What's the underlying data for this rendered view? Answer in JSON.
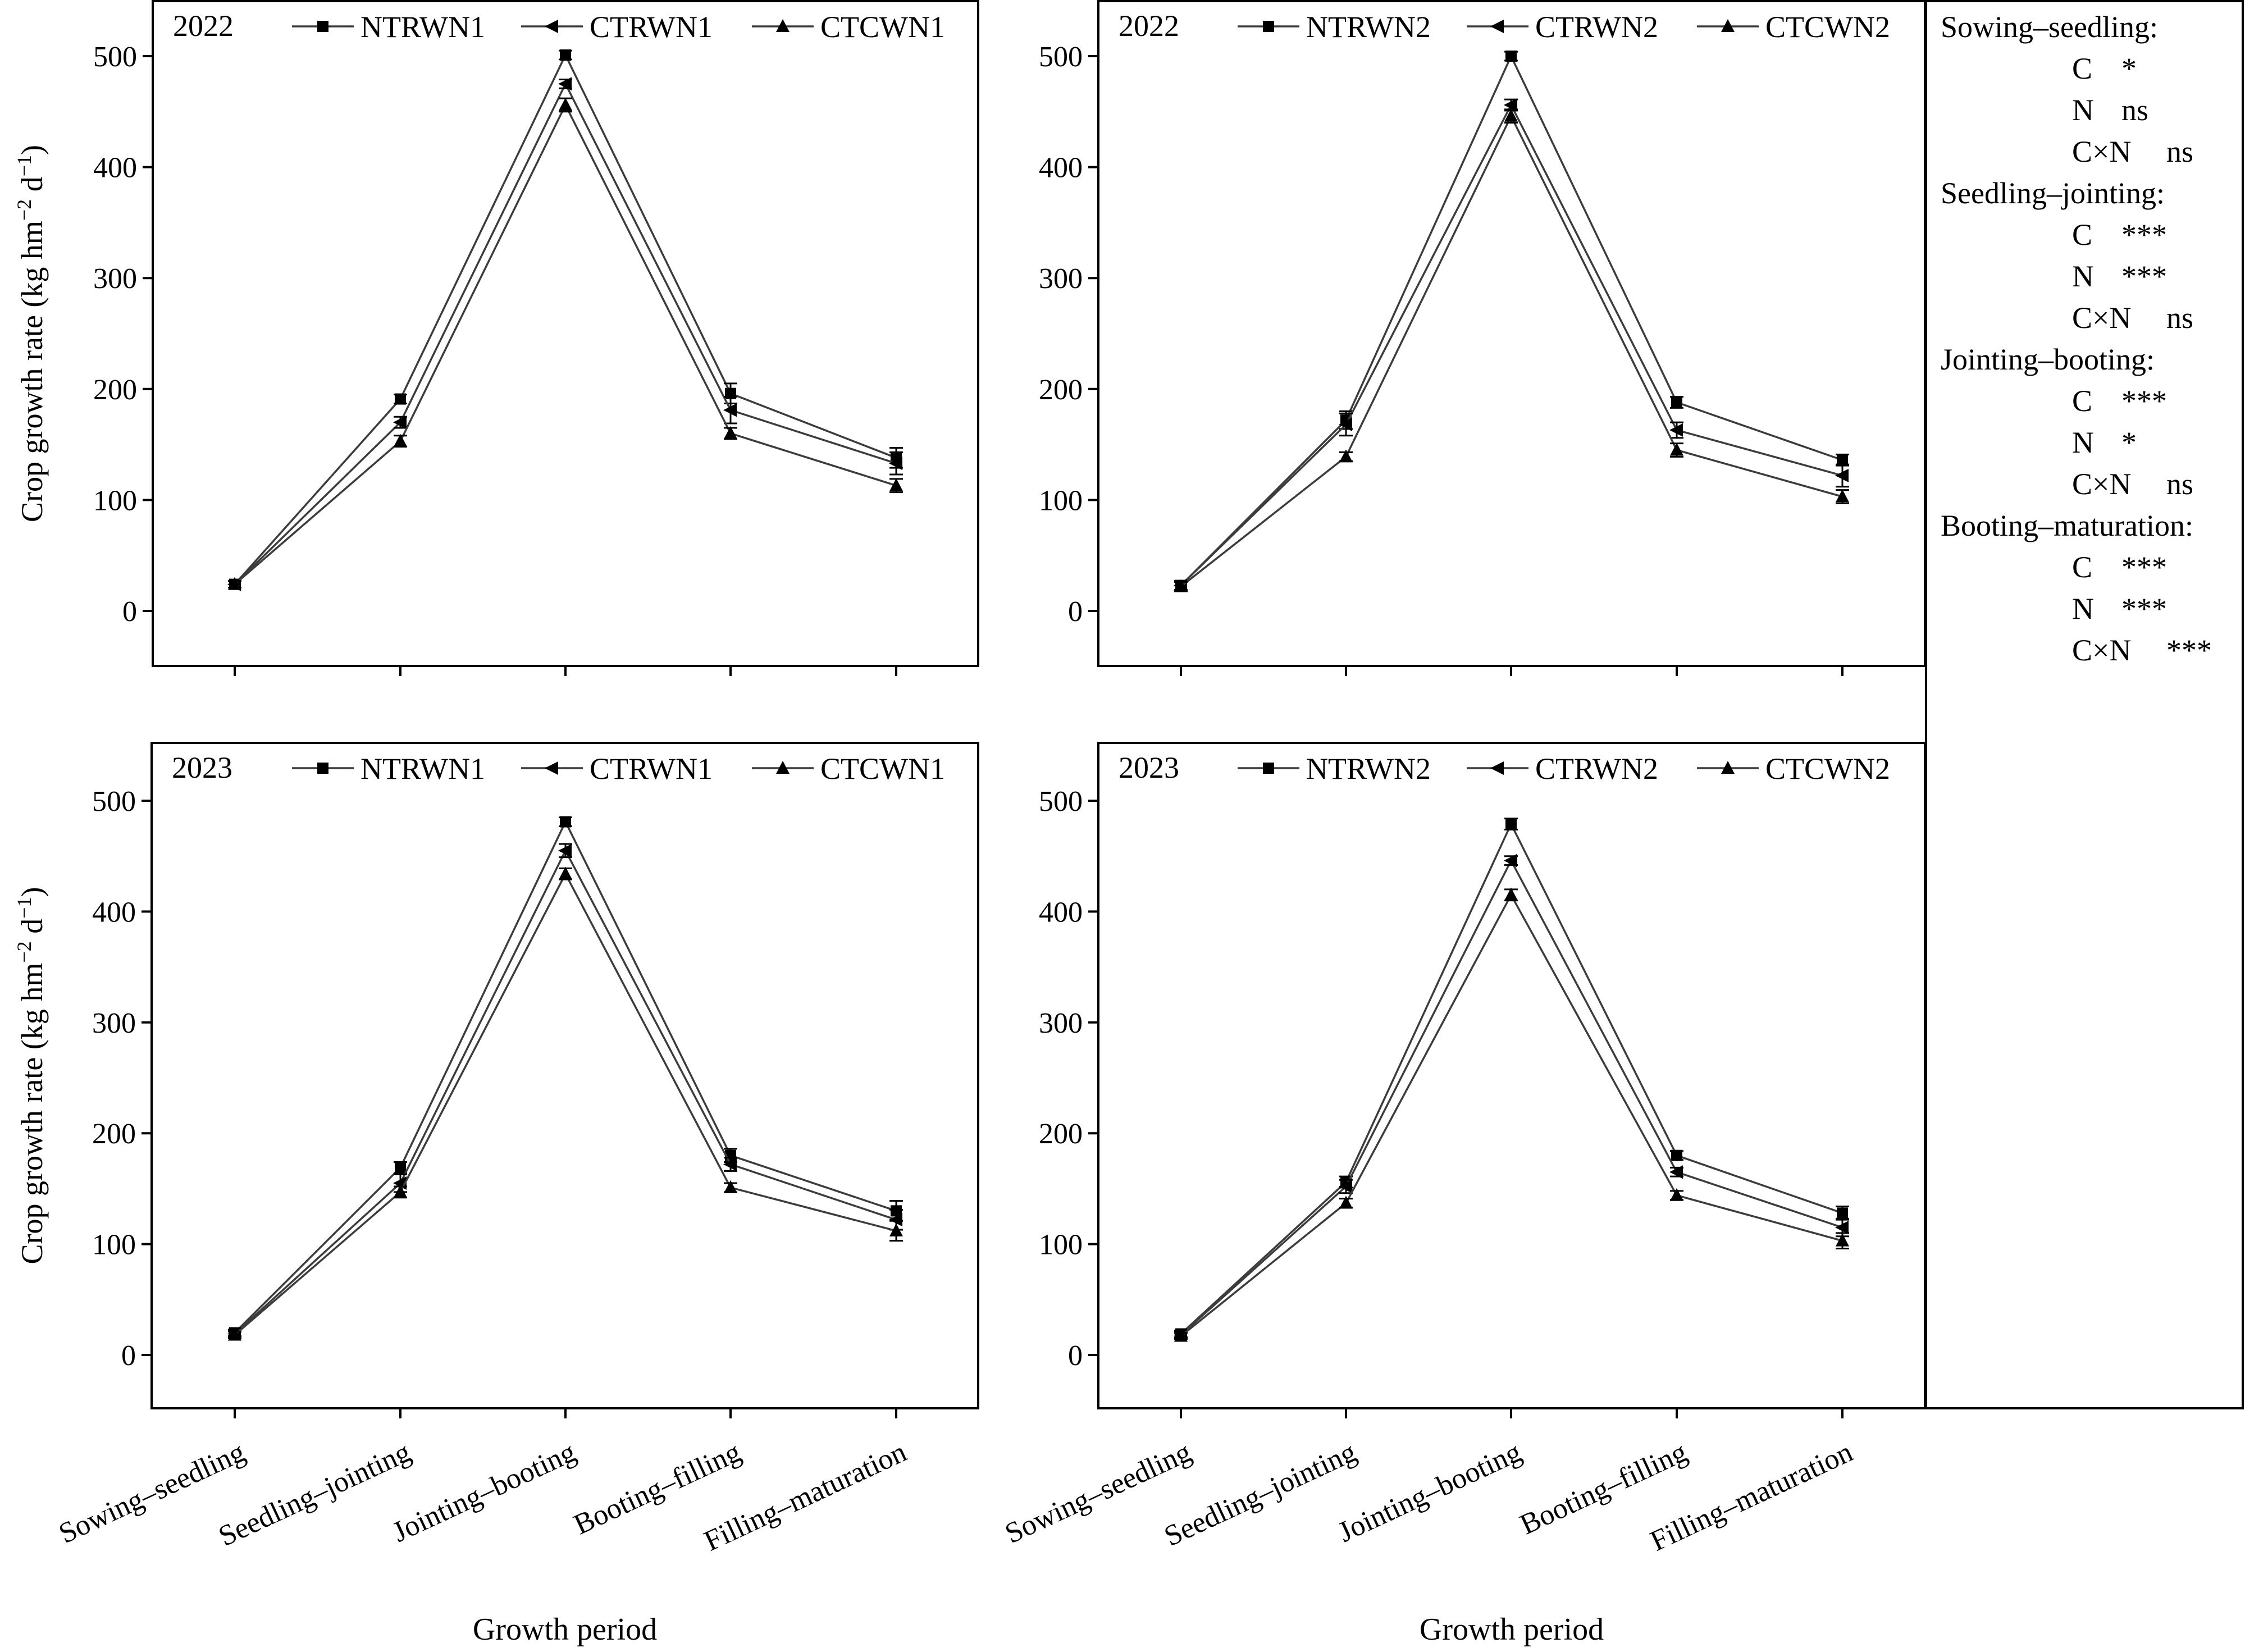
{
  "chart_data": [
    {
      "type": "line",
      "year_label": "2022",
      "categories": [
        "Sowing–seedling",
        "Seedling–jointing",
        "Jointing–booting",
        "Booting–filling",
        "Filling–maturation"
      ],
      "series": [
        {
          "name": "NTRWN1",
          "marker": "square",
          "values": [
            24,
            191,
            501,
            196,
            138
          ],
          "errors": [
            3,
            4,
            4,
            9,
            9
          ]
        },
        {
          "name": "CTRWN1",
          "marker": "left-triangle",
          "values": [
            24,
            170,
            475,
            181,
            133
          ],
          "errors": [
            3,
            5,
            4,
            12,
            10
          ]
        },
        {
          "name": "CTCWN1",
          "marker": "triangle",
          "values": [
            24,
            153,
            456,
            160,
            113
          ],
          "errors": [
            3,
            5,
            6,
            5,
            6
          ]
        }
      ],
      "xlabel": "",
      "ylabel": "Crop growth rate (kg hm⁻² d⁻¹)",
      "ylim": [
        -50,
        550
      ],
      "yticks": [
        0,
        100,
        200,
        300,
        400,
        500
      ],
      "legend": "top",
      "grid": false
    },
    {
      "type": "line",
      "year_label": "2022",
      "categories": [
        "Sowing–seedling",
        "Seedling–jointing",
        "Jointing–booting",
        "Booting–filling",
        "Filling–maturation"
      ],
      "series": [
        {
          "name": "NTRWN2",
          "marker": "square",
          "values": [
            23,
            172,
            500,
            188,
            136
          ],
          "errors": [
            4,
            8,
            4,
            5,
            5
          ]
        },
        {
          "name": "CTRWN2",
          "marker": "left-triangle",
          "values": [
            23,
            168,
            456,
            163,
            122
          ],
          "errors": [
            4,
            10,
            5,
            7,
            10
          ]
        },
        {
          "name": "CTCWN2",
          "marker": "triangle",
          "values": [
            22,
            139,
            446,
            145,
            103
          ],
          "errors": [
            4,
            4,
            6,
            6,
            6
          ]
        }
      ],
      "xlabel": "",
      "ylabel": "",
      "ylim": [
        -50,
        550
      ],
      "yticks": [
        0,
        100,
        200,
        300,
        400,
        500
      ],
      "legend": "top",
      "grid": false
    },
    {
      "type": "line",
      "year_label": "2023",
      "categories": [
        "Sowing–seedling",
        "Seedling–jointing",
        "Jointing–booting",
        "Booting–filling",
        "Filling–maturation"
      ],
      "series": [
        {
          "name": "NTRWN1",
          "marker": "square",
          "values": [
            20,
            169,
            481,
            180,
            130
          ],
          "errors": [
            3,
            5,
            4,
            6,
            9
          ]
        },
        {
          "name": "CTRWN1",
          "marker": "left-triangle",
          "values": [
            19,
            155,
            455,
            172,
            122
          ],
          "errors": [
            3,
            8,
            6,
            6,
            9
          ]
        },
        {
          "name": "CTCWN1",
          "marker": "triangle",
          "values": [
            18,
            147,
            434,
            151,
            112
          ],
          "errors": [
            3,
            5,
            5,
            4,
            9
          ]
        }
      ],
      "xlabel": "Growth period",
      "ylabel": "Crop growth rate (kg hm⁻² d⁻¹)",
      "ylim": [
        -50,
        550
      ],
      "yticks": [
        0,
        100,
        200,
        300,
        400,
        500
      ],
      "legend": "top",
      "grid": false
    },
    {
      "type": "line",
      "year_label": "2023",
      "categories": [
        "Sowing–seedling",
        "Seedling–jointing",
        "Jointing–booting",
        "Booting–filling",
        "Filling–maturation"
      ],
      "series": [
        {
          "name": "NTRWN2",
          "marker": "square",
          "values": [
            19,
            156,
            479,
            180,
            128
          ],
          "errors": [
            3,
            5,
            5,
            4,
            6
          ]
        },
        {
          "name": "CTRWN2",
          "marker": "left-triangle",
          "values": [
            18,
            152,
            446,
            165,
            115
          ],
          "errors": [
            3,
            6,
            4,
            4,
            8
          ]
        },
        {
          "name": "CTCWN2",
          "marker": "triangle",
          "values": [
            17,
            137,
            415,
            144,
            103
          ],
          "errors": [
            3,
            4,
            5,
            4,
            7
          ]
        }
      ],
      "xlabel": "Growth period",
      "ylabel": "",
      "ylim": [
        -50,
        550
      ],
      "yticks": [
        0,
        100,
        200,
        300,
        400,
        500
      ],
      "legend": "top",
      "grid": false
    }
  ],
  "stats_box": [
    {
      "period": "Sowing–seedling:",
      "rows": [
        {
          "factor": "C",
          "sig": "*"
        },
        {
          "factor": "N",
          "sig": "ns"
        },
        {
          "factor": "C×N",
          "sig": "ns"
        }
      ]
    },
    {
      "period": "Seedling–jointing:",
      "rows": [
        {
          "factor": "C",
          "sig": "***"
        },
        {
          "factor": "N",
          "sig": "***"
        },
        {
          "factor": "C×N",
          "sig": "ns"
        }
      ]
    },
    {
      "period": "Jointing–booting:",
      "rows": [
        {
          "factor": "C",
          "sig": "***"
        },
        {
          "factor": "N",
          "sig": "*"
        },
        {
          "factor": "C×N",
          "sig": "ns"
        }
      ]
    },
    {
      "period": "Booting–maturation:",
      "rows": [
        {
          "factor": "C",
          "sig": "***"
        },
        {
          "factor": "N",
          "sig": "***"
        },
        {
          "factor": "C×N",
          "sig": "***"
        }
      ]
    }
  ],
  "colors": {
    "line": "#3c3c3c",
    "marker": "#000000",
    "axis": "#000000"
  }
}
